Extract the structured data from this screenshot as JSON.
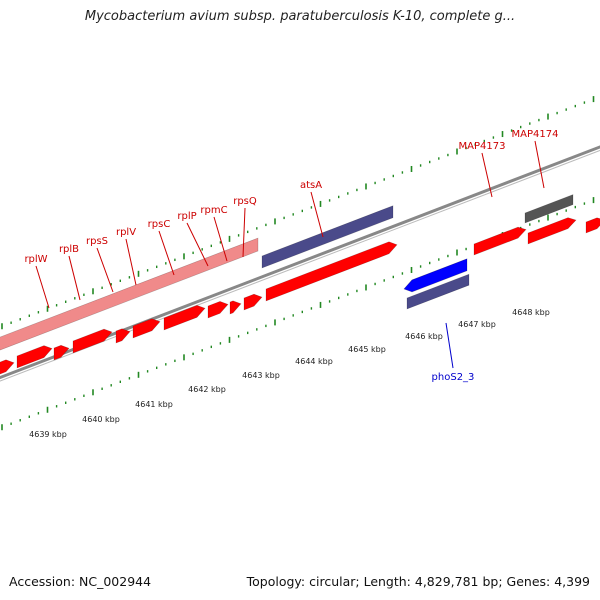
{
  "header": {
    "title": "Mycobacterium avium subsp. paratuberculosis K-10, complete g..."
  },
  "footer": {
    "accession": "Accession: NC_002944",
    "summary": "Topology: circular; Length: 4,829,781 bp; Genes: 4,399"
  },
  "colors": {
    "gene_label_forward": "#cc0000",
    "gene_label_reverse": "#0000cc",
    "cds_forward": "#ff0000",
    "cds_reverse": "#0000ff",
    "ribosomal_block": "#f08a8a",
    "other_feature": "#4a4a8a",
    "hypothetical": "#555555",
    "backbone": "#888888",
    "ticks": "#228822"
  },
  "scale_labels": [
    "4639 kbp",
    "4640 kbp",
    "4641 kbp",
    "4642 kbp",
    "4643 kbp",
    "4644 kbp",
    "4645 kbp",
    "4646 kbp",
    "4647 kbp",
    "4648 kbp"
  ],
  "gene_labels": [
    {
      "name": "rplW",
      "strand": "forward"
    },
    {
      "name": "rplB",
      "strand": "forward"
    },
    {
      "name": "rpsS",
      "strand": "forward"
    },
    {
      "name": "rplV",
      "strand": "forward"
    },
    {
      "name": "rpsC",
      "strand": "forward"
    },
    {
      "name": "rplP",
      "strand": "forward"
    },
    {
      "name": "rpmC",
      "strand": "forward"
    },
    {
      "name": "rpsQ",
      "strand": "forward"
    },
    {
      "name": "atsA",
      "strand": "forward"
    },
    {
      "name": "MAP4173",
      "strand": "forward"
    },
    {
      "name": "MAP4174",
      "strand": "forward"
    },
    {
      "name": "phoS2_3",
      "strand": "reverse"
    }
  ]
}
